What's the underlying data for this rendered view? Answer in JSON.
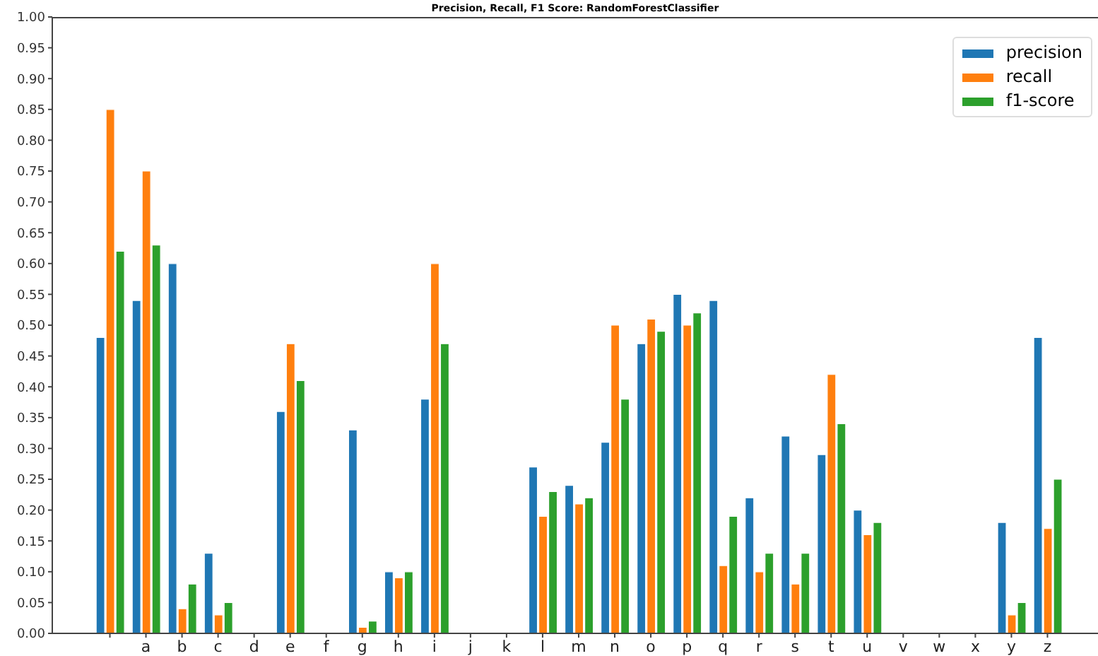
{
  "chart_data": {
    "type": "bar",
    "title": "Precision, Recall, F1 Score: RandomForestClassifier",
    "categories": [
      null,
      "a",
      "b",
      "c",
      "d",
      "e",
      "f",
      "g",
      "h",
      "i",
      "j",
      "k",
      "l",
      "m",
      "n",
      "o",
      "p",
      "q",
      "r",
      "s",
      "t",
      "u",
      "v",
      "w",
      "x",
      "y",
      "z"
    ],
    "series": [
      {
        "name": "precision",
        "color": "#1f77b4",
        "values": [
          0.48,
          0.54,
          0.6,
          0.13,
          0,
          0.36,
          0,
          0.33,
          0.1,
          0.38,
          0,
          0,
          0.27,
          0.24,
          0.31,
          0.47,
          0.55,
          0.54,
          0.22,
          0.32,
          0.29,
          0.2,
          0,
          0,
          0,
          0.18,
          0.48
        ]
      },
      {
        "name": "recall",
        "color": "#ff7f0e",
        "values": [
          0.85,
          0.75,
          0.04,
          0.03,
          0,
          0.47,
          0,
          0.01,
          0.09,
          0.6,
          0,
          0,
          0.19,
          0.21,
          0.5,
          0.51,
          0.5,
          0.11,
          0.1,
          0.08,
          0.42,
          0.16,
          0,
          0,
          0,
          0.03,
          0.17
        ]
      },
      {
        "name": "f1-score",
        "color": "#2ca02c",
        "values": [
          0.62,
          0.63,
          0.08,
          0.05,
          0,
          0.41,
          0,
          0.02,
          0.1,
          0.47,
          0,
          0,
          0.23,
          0.22,
          0.38,
          0.49,
          0.52,
          0.19,
          0.13,
          0.13,
          0.34,
          0.18,
          0,
          0,
          0,
          0.05,
          0.25
        ]
      }
    ],
    "ylim": [
      0,
      1
    ],
    "yticks": [
      {
        "value": 0,
        "label": "0.00"
      },
      {
        "value": 0.05,
        "label": "0.05"
      },
      {
        "value": 0.1,
        "label": "0.10"
      },
      {
        "value": 0.15,
        "label": "0.15"
      },
      {
        "value": 0.2,
        "label": "0.20"
      },
      {
        "value": 0.25,
        "label": "0.25"
      },
      {
        "value": 0.3,
        "label": "0.30"
      },
      {
        "value": 0.35,
        "label": "0.35"
      },
      {
        "value": 0.4,
        "label": "0.40"
      },
      {
        "value": 0.45,
        "label": "0.45"
      },
      {
        "value": 0.5,
        "label": "0.50"
      },
      {
        "value": 0.55,
        "label": "0.55"
      },
      {
        "value": 0.6,
        "label": "0.60"
      },
      {
        "value": 0.65,
        "label": "0.65"
      },
      {
        "value": 0.7,
        "label": "0.70"
      },
      {
        "value": 0.75,
        "label": "0.75"
      },
      {
        "value": 0.8,
        "label": "0.80"
      },
      {
        "value": 0.85,
        "label": "0.85"
      },
      {
        "value": 0.9,
        "label": "0.90"
      },
      {
        "value": 0.95,
        "label": "0.95"
      },
      {
        "value": 1,
        "label": "1.00"
      }
    ],
    "legend": "top right"
  }
}
